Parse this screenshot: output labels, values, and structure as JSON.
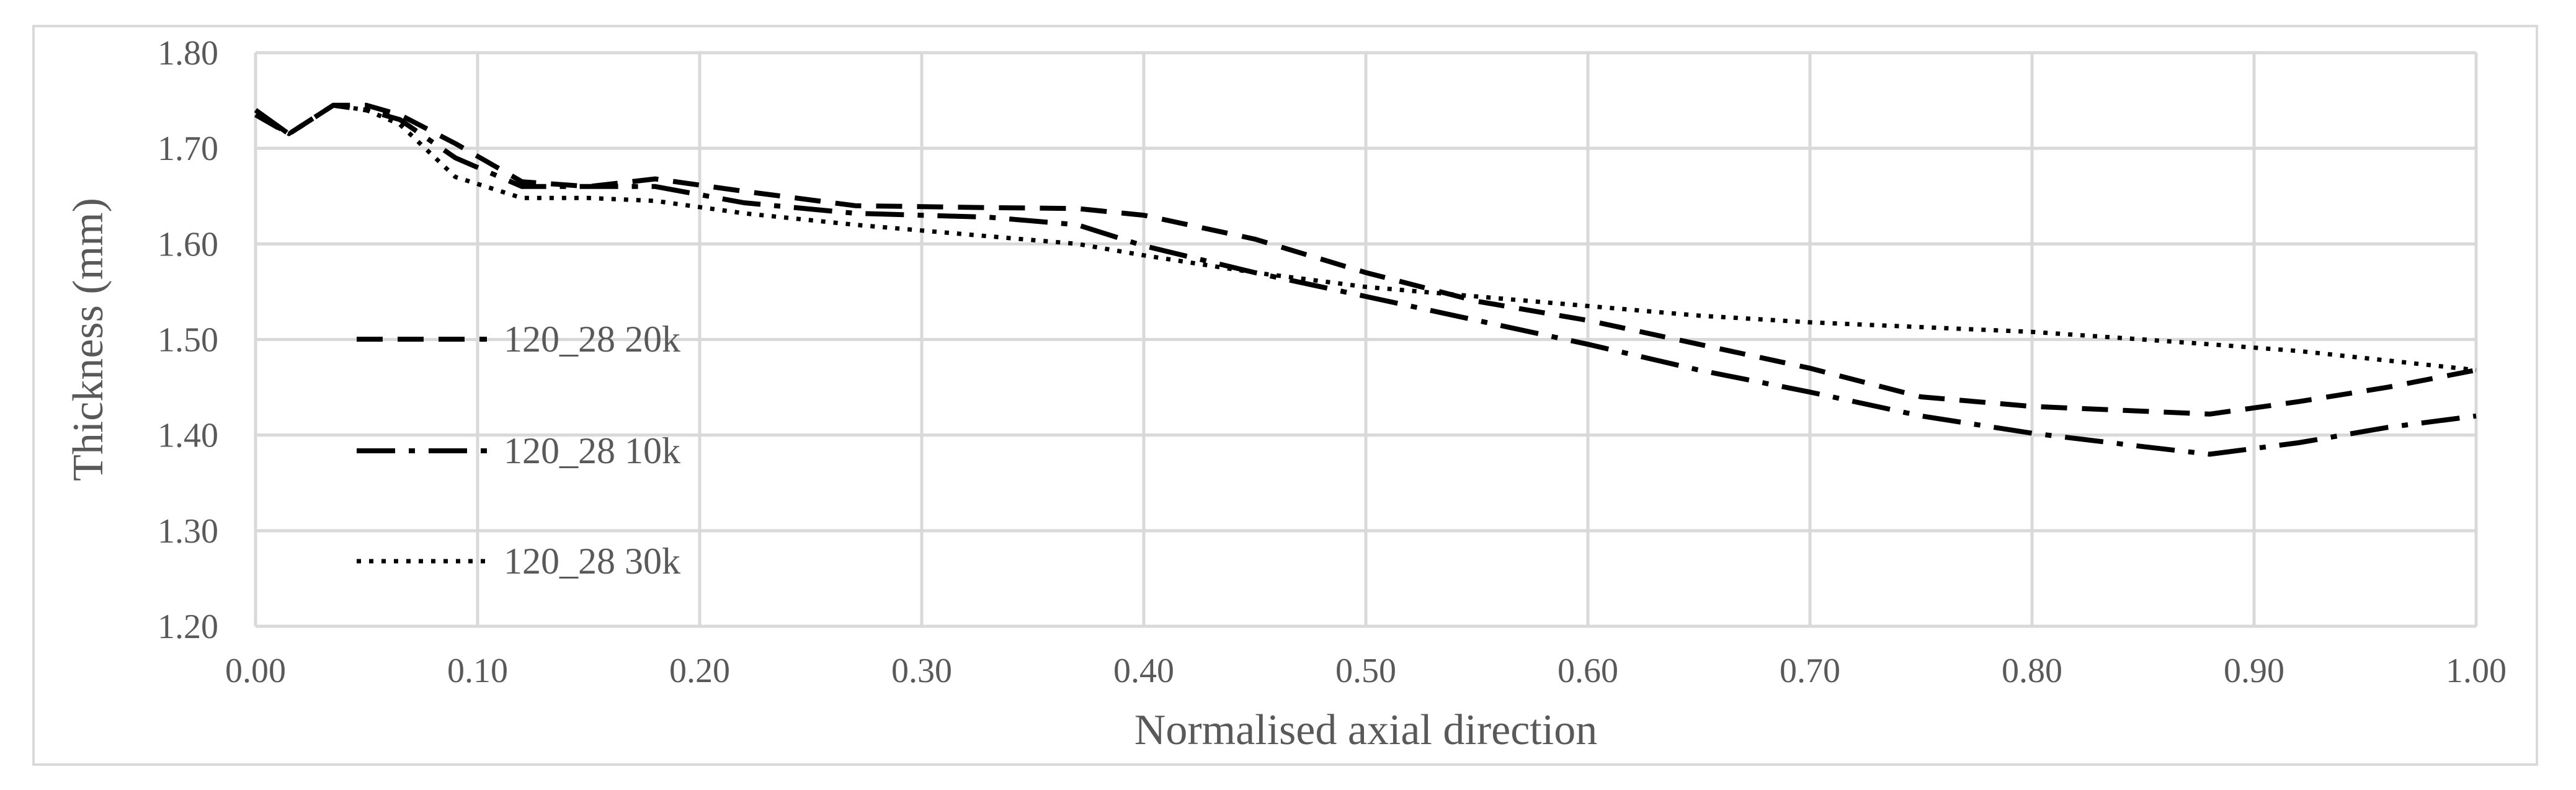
{
  "chart_data": {
    "type": "line",
    "title": "",
    "xlabel": "Normalised axial direction",
    "ylabel": "Thickness (mm)",
    "xlim": [
      0,
      1
    ],
    "ylim": [
      1.2,
      1.8
    ],
    "x_ticks": [
      "0.00",
      "0.10",
      "0.20",
      "0.30",
      "0.40",
      "0.50",
      "0.60",
      "0.70",
      "0.80",
      "0.90",
      "1.00"
    ],
    "y_ticks": [
      "1.20",
      "1.30",
      "1.40",
      "1.50",
      "1.60",
      "1.70",
      "1.80"
    ],
    "grid": true,
    "legend_position": "left-middle",
    "series": [
      {
        "name": "120_28 20k",
        "style": "dashed",
        "color": "#000000",
        "x": [
          0.0,
          0.015,
          0.035,
          0.05,
          0.065,
          0.09,
          0.12,
          0.15,
          0.18,
          0.22,
          0.27,
          0.33,
          0.37,
          0.4,
          0.45,
          0.5,
          0.55,
          0.6,
          0.65,
          0.7,
          0.75,
          0.8,
          0.85,
          0.88,
          0.92,
          0.96,
          1.0
        ],
        "y": [
          1.735,
          1.715,
          1.745,
          1.745,
          1.735,
          1.705,
          1.665,
          1.66,
          1.668,
          1.655,
          1.64,
          1.638,
          1.637,
          1.63,
          1.605,
          1.57,
          1.54,
          1.52,
          1.495,
          1.47,
          1.44,
          1.43,
          1.425,
          1.422,
          1.435,
          1.45,
          1.468
        ]
      },
      {
        "name": "120_28 10k",
        "style": "dash-dot",
        "color": "#000000",
        "x": [
          0.0,
          0.015,
          0.035,
          0.05,
          0.065,
          0.09,
          0.12,
          0.15,
          0.18,
          0.22,
          0.27,
          0.33,
          0.37,
          0.4,
          0.45,
          0.5,
          0.55,
          0.6,
          0.65,
          0.7,
          0.75,
          0.8,
          0.85,
          0.88,
          0.92,
          0.96,
          1.0
        ],
        "y": [
          1.74,
          1.715,
          1.745,
          1.74,
          1.73,
          1.69,
          1.66,
          1.66,
          1.66,
          1.643,
          1.632,
          1.628,
          1.62,
          1.598,
          1.57,
          1.545,
          1.52,
          1.495,
          1.468,
          1.445,
          1.42,
          1.402,
          1.388,
          1.38,
          1.392,
          1.408,
          1.42
        ]
      },
      {
        "name": "120_28 30k",
        "style": "dotted",
        "color": "#000000",
        "x": [
          0.0,
          0.015,
          0.035,
          0.05,
          0.065,
          0.09,
          0.12,
          0.15,
          0.18,
          0.22,
          0.27,
          0.33,
          0.37,
          0.4,
          0.45,
          0.5,
          0.55,
          0.6,
          0.65,
          0.7,
          0.75,
          0.8,
          0.85,
          0.88,
          0.92,
          0.96,
          1.0
        ],
        "y": [
          1.735,
          1.715,
          1.745,
          1.74,
          1.725,
          1.67,
          1.648,
          1.648,
          1.645,
          1.632,
          1.62,
          1.608,
          1.6,
          1.588,
          1.57,
          1.555,
          1.545,
          1.535,
          1.525,
          1.518,
          1.513,
          1.508,
          1.5,
          1.495,
          1.488,
          1.478,
          1.468
        ]
      }
    ]
  }
}
